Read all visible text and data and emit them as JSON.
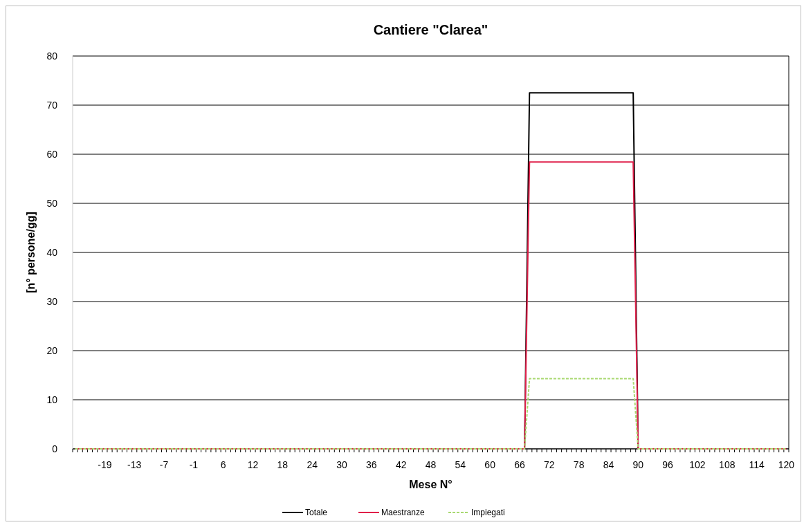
{
  "chart_data": {
    "type": "line",
    "title": "Cantiere \"Clarea\"",
    "xlabel": "Mese N°",
    "ylabel": "[n° persone/gg]",
    "categories": [
      null,
      null,
      null,
      null,
      null,
      null,
      "-19",
      null,
      null,
      null,
      null,
      null,
      "-13",
      null,
      null,
      null,
      null,
      null,
      "-7",
      null,
      null,
      null,
      null,
      null,
      "-1",
      null,
      null,
      null,
      null,
      null,
      "6",
      null,
      null,
      null,
      null,
      null,
      "12",
      null,
      null,
      null,
      null,
      null,
      "18",
      null,
      null,
      null,
      null,
      null,
      "24",
      null,
      null,
      null,
      null,
      null,
      "30",
      null,
      null,
      null,
      null,
      null,
      "36",
      null,
      null,
      null,
      null,
      null,
      "42",
      null,
      null,
      null,
      null,
      null,
      "48",
      null,
      null,
      null,
      null,
      null,
      "54",
      null,
      null,
      null,
      null,
      null,
      "60",
      null,
      null,
      null,
      null,
      null,
      "66",
      null,
      null,
      null,
      null,
      null,
      "72",
      null,
      null,
      null,
      null,
      null,
      "78",
      null,
      null,
      null,
      null,
      null,
      "84",
      null,
      null,
      null,
      null,
      null,
      "90",
      null,
      null,
      null,
      null,
      null,
      "96",
      null,
      null,
      null,
      null,
      null,
      "102",
      null,
      null,
      null,
      null,
      null,
      "108",
      null,
      null,
      null,
      null,
      null,
      "114",
      null,
      null,
      null,
      null,
      null,
      "120"
    ],
    "series": [
      {
        "name": "Totale",
        "color": "#000000",
        "values": [
          0,
          0,
          0,
          0,
          0,
          0,
          0,
          0,
          0,
          0,
          0,
          0,
          0,
          0,
          0,
          0,
          0,
          0,
          0,
          0,
          0,
          0,
          0,
          0,
          0,
          0,
          0,
          0,
          0,
          0,
          0,
          0,
          0,
          0,
          0,
          0,
          0,
          0,
          0,
          0,
          0,
          0,
          0,
          0,
          0,
          0,
          0,
          0,
          0,
          0,
          0,
          0,
          0,
          0,
          0,
          0,
          0,
          0,
          0,
          0,
          0,
          0,
          0,
          0,
          0,
          0,
          0,
          0,
          0,
          0,
          0,
          0,
          0,
          0,
          0,
          0,
          0,
          0,
          0,
          0,
          0,
          0,
          0,
          0,
          0,
          0,
          0,
          0,
          0,
          0,
          0,
          0,
          72.5,
          72.5,
          72.5,
          72.5,
          72.5,
          72.5,
          72.5,
          72.5,
          72.5,
          72.5,
          72.5,
          72.5,
          72.5,
          72.5,
          72.5,
          72.5,
          72.5,
          72.5,
          72.5,
          72.5,
          72.5,
          72.5,
          0,
          0,
          0,
          0,
          0,
          0,
          0,
          0,
          0,
          0,
          0,
          0,
          0,
          0,
          0,
          0,
          0,
          0,
          0,
          0,
          0,
          0,
          0,
          0,
          0,
          0,
          0,
          0,
          0,
          0,
          0
        ]
      },
      {
        "name": "Maestranze",
        "color": "#e0204a",
        "values": [
          0,
          0,
          0,
          0,
          0,
          0,
          0,
          0,
          0,
          0,
          0,
          0,
          0,
          0,
          0,
          0,
          0,
          0,
          0,
          0,
          0,
          0,
          0,
          0,
          0,
          0,
          0,
          0,
          0,
          0,
          0,
          0,
          0,
          0,
          0,
          0,
          0,
          0,
          0,
          0,
          0,
          0,
          0,
          0,
          0,
          0,
          0,
          0,
          0,
          0,
          0,
          0,
          0,
          0,
          0,
          0,
          0,
          0,
          0,
          0,
          0,
          0,
          0,
          0,
          0,
          0,
          0,
          0,
          0,
          0,
          0,
          0,
          0,
          0,
          0,
          0,
          0,
          0,
          0,
          0,
          0,
          0,
          0,
          0,
          0,
          0,
          0,
          0,
          0,
          0,
          0,
          0,
          58.4,
          58.4,
          58.4,
          58.4,
          58.4,
          58.4,
          58.4,
          58.4,
          58.4,
          58.4,
          58.4,
          58.4,
          58.4,
          58.4,
          58.4,
          58.4,
          58.4,
          58.4,
          58.4,
          58.4,
          58.4,
          58.4,
          0,
          0,
          0,
          0,
          0,
          0,
          0,
          0,
          0,
          0,
          0,
          0,
          0,
          0,
          0,
          0,
          0,
          0,
          0,
          0,
          0,
          0,
          0,
          0,
          0,
          0,
          0,
          0,
          0,
          0,
          0
        ]
      },
      {
        "name": "Impiegati",
        "color": "#a8d870",
        "line_style": "dashed",
        "values": [
          0,
          0,
          0,
          0,
          0,
          0,
          0,
          0,
          0,
          0,
          0,
          0,
          0,
          0,
          0,
          0,
          0,
          0,
          0,
          0,
          0,
          0,
          0,
          0,
          0,
          0,
          0,
          0,
          0,
          0,
          0,
          0,
          0,
          0,
          0,
          0,
          0,
          0,
          0,
          0,
          0,
          0,
          0,
          0,
          0,
          0,
          0,
          0,
          0,
          0,
          0,
          0,
          0,
          0,
          0,
          0,
          0,
          0,
          0,
          0,
          0,
          0,
          0,
          0,
          0,
          0,
          0,
          0,
          0,
          0,
          0,
          0,
          0,
          0,
          0,
          0,
          0,
          0,
          0,
          0,
          0,
          0,
          0,
          0,
          0,
          0,
          0,
          0,
          0,
          0,
          0,
          0,
          14.3,
          14.3,
          14.3,
          14.3,
          14.3,
          14.3,
          14.3,
          14.3,
          14.3,
          14.3,
          14.3,
          14.3,
          14.3,
          14.3,
          14.3,
          14.3,
          14.3,
          14.3,
          14.3,
          14.3,
          14.3,
          14.3,
          0,
          0,
          0,
          0,
          0,
          0,
          0,
          0,
          0,
          0,
          0,
          0,
          0,
          0,
          0,
          0,
          0,
          0,
          0,
          0,
          0,
          0,
          0,
          0,
          0,
          0,
          0,
          0,
          0,
          0,
          0
        ]
      }
    ],
    "ylim": [
      0,
      80
    ],
    "yticks": [
      0,
      10,
      20,
      30,
      40,
      50,
      60,
      70,
      80
    ],
    "grid": "y",
    "legend": "bottom",
    "marker": "none"
  }
}
